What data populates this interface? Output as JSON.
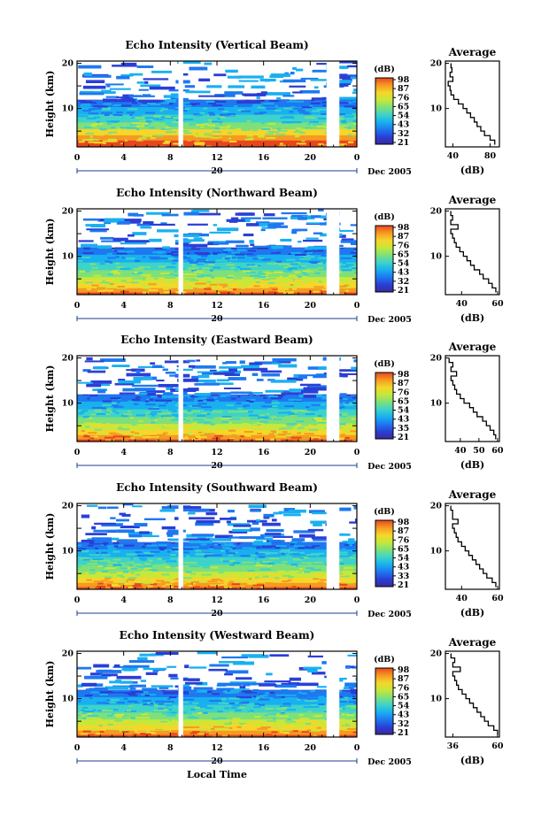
{
  "colors": {
    "colormap": [
      "#3a2a9c",
      "#2a3fd6",
      "#1e78f0",
      "#19b0f0",
      "#3ed3c8",
      "#7ee07a",
      "#c6e83a",
      "#f6d62a",
      "#f59a23",
      "#e8461f"
    ],
    "gap": "#ffffff",
    "line": "#000000"
  },
  "panels": [
    {
      "title": "Echo Intensity (Vertical Beam)"
    },
    {
      "title": "Echo Intensity (Northward Beam)"
    },
    {
      "title": "Echo Intensity (Eastward Beam)"
    },
    {
      "title": "Echo Intensity (Southward Beam)"
    },
    {
      "title": "Echo Intensity (Westward Beam)"
    }
  ],
  "shared": {
    "ylabel": "Height (km)",
    "xlabel": "Local Time",
    "date_day": "20",
    "date_month_year": "Dec 2005",
    "colorbar_unit": "(dB)",
    "average_title": "Average",
    "average_xlabel": "(dB)"
  },
  "chart_data": [
    {
      "type": "heatmap",
      "title": "Echo Intensity (Vertical Beam)",
      "ylabel": "Height (km)",
      "x_ticks": [
        "0",
        "4",
        "8",
        "12",
        "16",
        "20",
        "0"
      ],
      "y_ticks": [
        "20",
        "10"
      ],
      "xlim": [
        0,
        24
      ],
      "ylim": [
        1.5,
        20.5
      ],
      "colorbar": {
        "unit": "(dB)",
        "ticks": [
          "98",
          "87",
          "76",
          "65",
          "54",
          "43",
          "32",
          "21"
        ]
      },
      "data_gaps_hours": [
        [
          8.7,
          9.1
        ],
        [
          21.4,
          22.5
        ]
      ],
      "profile": {
        "title": "Average",
        "xlabel": "(dB)",
        "x_ticks": [
          "40",
          "80"
        ],
        "xlim": [
          32,
          90
        ],
        "y": [
          2,
          3,
          4,
          5,
          6,
          7,
          8,
          9,
          10,
          11,
          12,
          13,
          14,
          15,
          16,
          17,
          18,
          19,
          20
        ],
        "x": [
          85,
          80,
          74,
          70,
          66,
          63,
          59,
          55,
          51,
          46,
          41,
          38,
          37,
          35,
          40,
          37,
          39,
          38,
          38
        ]
      }
    },
    {
      "type": "heatmap",
      "title": "Echo Intensity (Northward Beam)",
      "ylabel": "Height (km)",
      "x_ticks": [
        "0",
        "4",
        "8",
        "12",
        "16",
        "20",
        "0"
      ],
      "y_ticks": [
        "20",
        "10"
      ],
      "xlim": [
        0,
        24
      ],
      "ylim": [
        1.5,
        20.5
      ],
      "colorbar": {
        "unit": "(dB)",
        "ticks": [
          "98",
          "87",
          "76",
          "65",
          "54",
          "43",
          "32",
          "21"
        ]
      },
      "data_gaps_hours": [
        [
          8.7,
          9.1
        ],
        [
          21.4,
          22.5
        ]
      ],
      "profile": {
        "title": "Average",
        "xlabel": "(dB)",
        "x_ticks": [
          "40",
          "60"
        ],
        "xlim": [
          31,
          61
        ],
        "y": [
          2,
          3,
          4,
          5,
          6,
          7,
          8,
          9,
          10,
          11,
          12,
          13,
          14,
          15,
          16,
          17,
          18,
          19,
          20
        ],
        "x": [
          59,
          57,
          55,
          52,
          50,
          47,
          45,
          43,
          41,
          39,
          37,
          36,
          35,
          34,
          38,
          34,
          35,
          34,
          34
        ]
      }
    },
    {
      "type": "heatmap",
      "title": "Echo Intensity (Eastward Beam)",
      "ylabel": "Height (km)",
      "x_ticks": [
        "0",
        "4",
        "8",
        "12",
        "16",
        "20",
        "0"
      ],
      "y_ticks": [
        "20",
        "10"
      ],
      "xlim": [
        0,
        24
      ],
      "ylim": [
        1.5,
        20.5
      ],
      "colorbar": {
        "unit": "(dB)",
        "ticks": [
          "98",
          "87",
          "76",
          "65",
          "54",
          "43",
          "35",
          "21"
        ]
      },
      "data_gaps_hours": [
        [
          8.7,
          9.1
        ],
        [
          21.4,
          22.5
        ]
      ],
      "profile": {
        "title": "Average",
        "xlabel": "(dB)",
        "x_ticks": [
          "40",
          "50",
          "60"
        ],
        "xlim": [
          32,
          61
        ],
        "y": [
          2,
          3,
          4,
          5,
          6,
          7,
          8,
          9,
          10,
          11,
          12,
          13,
          14,
          15,
          16,
          17,
          18,
          19,
          20
        ],
        "x": [
          59,
          58,
          56,
          54,
          52,
          49,
          47,
          45,
          42,
          40,
          38,
          37,
          36,
          35,
          38,
          35,
          36,
          34,
          34
        ]
      }
    },
    {
      "type": "heatmap",
      "title": "Echo Intensity (Southward Beam)",
      "ylabel": "Height (km)",
      "x_ticks": [
        "0",
        "4",
        "8",
        "12",
        "16",
        "20",
        "0"
      ],
      "y_ticks": [
        "20",
        "10"
      ],
      "xlim": [
        0,
        24
      ],
      "ylim": [
        1.5,
        20.5
      ],
      "colorbar": {
        "unit": "(dB)",
        "ticks": [
          "98",
          "87",
          "76",
          "65",
          "54",
          "43",
          "33",
          "21"
        ]
      },
      "data_gaps_hours": [
        [
          8.7,
          9.1
        ],
        [
          21.4,
          22.5
        ]
      ],
      "profile": {
        "title": "Average",
        "xlabel": "(dB)",
        "x_ticks": [
          "40",
          "60"
        ],
        "xlim": [
          31,
          61
        ],
        "y": [
          2,
          3,
          4,
          5,
          6,
          7,
          8,
          9,
          10,
          11,
          12,
          13,
          14,
          15,
          16,
          17,
          18,
          19,
          20
        ],
        "x": [
          59,
          57,
          54,
          52,
          50,
          48,
          46,
          44,
          42,
          40,
          38,
          37,
          36,
          35,
          38,
          35,
          35,
          34,
          34
        ]
      }
    },
    {
      "type": "heatmap",
      "title": "Echo Intensity (Westward Beam)",
      "ylabel": "Height (km)",
      "x_ticks": [
        "0",
        "4",
        "8",
        "12",
        "16",
        "20",
        "0"
      ],
      "y_ticks": [
        "20",
        "10"
      ],
      "xlim": [
        0,
        24
      ],
      "ylim": [
        1.5,
        20.5
      ],
      "colorbar": {
        "unit": "(dB)",
        "ticks": [
          "98",
          "87",
          "76",
          "65",
          "54",
          "43",
          "32",
          "21"
        ]
      },
      "data_gaps_hours": [
        [
          8.7,
          9.1
        ],
        [
          21.4,
          22.5
        ]
      ],
      "profile": {
        "title": "Average",
        "xlabel": "(dB)",
        "x_ticks": [
          "36",
          "60"
        ],
        "xlim": [
          32,
          61
        ],
        "y": [
          2,
          3,
          4,
          5,
          6,
          7,
          8,
          9,
          10,
          11,
          12,
          13,
          14,
          15,
          16,
          17,
          18,
          19,
          20
        ],
        "x": [
          60,
          58,
          55,
          53,
          51,
          49,
          47,
          45,
          43,
          41,
          39,
          38,
          37,
          36,
          40,
          36,
          37,
          35,
          35
        ]
      }
    }
  ]
}
